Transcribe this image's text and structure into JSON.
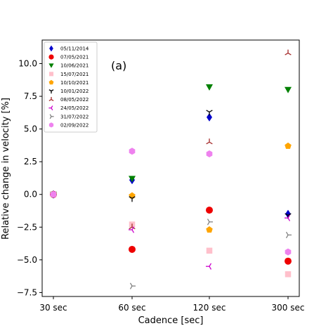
{
  "chart_data": {
    "type": "scatter",
    "title": "",
    "annotation": "(a)",
    "xlabel": "Cadence [sec]",
    "ylabel": "Relative change in velocity [%]",
    "categories": [
      "30 sec",
      "60 sec",
      "120 sec",
      "300 sec"
    ],
    "ylim": [
      -7.8,
      11.8
    ],
    "yticks": [
      "−7.5",
      "−5.0",
      "−2.5",
      "0.0",
      "2.5",
      "5.0",
      "7.5",
      "10.0"
    ],
    "ytick_values": [
      -7.5,
      -5.0,
      -2.5,
      0.0,
      2.5,
      5.0,
      7.5,
      10.0
    ],
    "grid": false,
    "legend_position": "top-left",
    "series": [
      {
        "name": "05/11/2014",
        "marker": "diamond",
        "color": "#0000cc",
        "values": [
          0.0,
          1.1,
          5.9,
          -1.5
        ]
      },
      {
        "name": "07/05/2021",
        "marker": "circle",
        "color": "#ee0000",
        "values": [
          0.0,
          -4.2,
          -1.2,
          -5.1
        ]
      },
      {
        "name": "10/06/2021",
        "marker": "triangle-down",
        "color": "#008000",
        "values": [
          0.0,
          1.2,
          8.2,
          8.0
        ]
      },
      {
        "name": "15/07/2021",
        "marker": "square",
        "color": "#ffc0cb",
        "values": [
          0.0,
          -2.3,
          -4.3,
          -6.1
        ]
      },
      {
        "name": "10/10/2021",
        "marker": "pentagon",
        "color": "#ffa500",
        "values": [
          0.0,
          -0.1,
          -2.7,
          3.7
        ]
      },
      {
        "name": "10/01/2022",
        "marker": "tri-down",
        "color": "#000000",
        "values": [
          0.0,
          -0.3,
          6.3,
          -1.6
        ]
      },
      {
        "name": "08/05/2022",
        "marker": "tri-up",
        "color": "#a52a2a",
        "values": [
          0.0,
          -2.5,
          4.0,
          10.8
        ]
      },
      {
        "name": "24/05/2022",
        "marker": "tri-left",
        "color": "#cc00cc",
        "values": [
          0.0,
          -2.7,
          -5.5,
          -1.8
        ]
      },
      {
        "name": "31/07/2022",
        "marker": "tri-right",
        "color": "#808080",
        "values": [
          0.0,
          -7.0,
          -2.1,
          -3.1
        ]
      },
      {
        "name": "02/09/2022",
        "marker": "hexagon",
        "color": "#ee82ee",
        "values": [
          0.0,
          3.3,
          3.1,
          -4.4
        ]
      }
    ]
  }
}
